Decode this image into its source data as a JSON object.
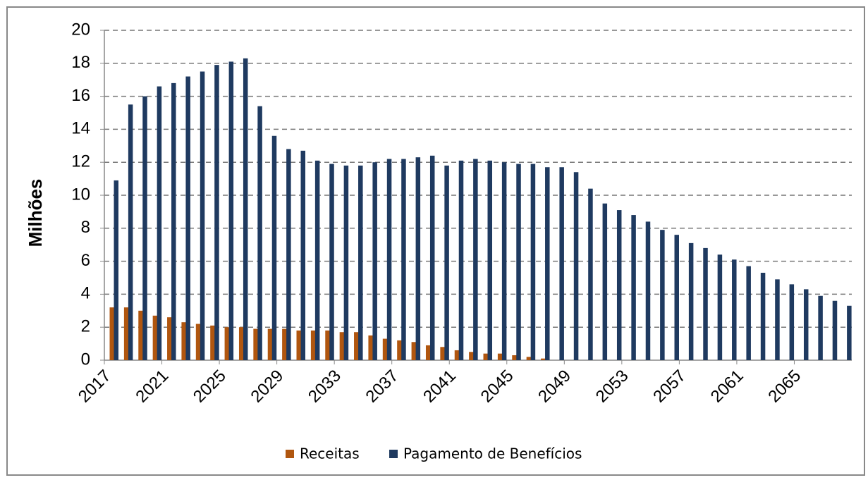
{
  "chart_data": {
    "type": "bar",
    "y_label": "Milhões",
    "categories": [
      "2017",
      null,
      null,
      null,
      "2021",
      null,
      null,
      null,
      "2025",
      null,
      null,
      null,
      "2029",
      null,
      null,
      null,
      "2033",
      null,
      null,
      null,
      "2037",
      null,
      null,
      null,
      "2041",
      null,
      null,
      null,
      "2045",
      null,
      null,
      null,
      "2049",
      null,
      null,
      null,
      "2053",
      null,
      null,
      null,
      "2057",
      null,
      null,
      null,
      "2061",
      null,
      null,
      null,
      "2065",
      null,
      null,
      null
    ],
    "series": [
      {
        "name": "Receitas",
        "color": "#b0560f",
        "values": [
          3.2,
          3.2,
          3.0,
          2.7,
          2.6,
          2.3,
          2.2,
          2.1,
          2.0,
          2.0,
          1.9,
          1.9,
          1.9,
          1.8,
          1.8,
          1.8,
          1.7,
          1.7,
          1.5,
          1.3,
          1.2,
          1.1,
          0.9,
          0.8,
          0.6,
          0.5,
          0.4,
          0.4,
          0.3,
          0.2,
          0.1,
          0,
          0,
          0,
          0,
          0,
          0,
          0,
          0,
          0,
          0,
          0,
          0,
          0,
          0,
          0,
          0,
          0,
          0,
          0,
          0,
          0
        ]
      },
      {
        "name": "Pagamento de Benefícios",
        "color": "#1f3a60",
        "values": [
          10.9,
          15.5,
          16.0,
          16.6,
          16.8,
          17.2,
          17.5,
          17.9,
          18.1,
          18.3,
          15.4,
          13.6,
          12.8,
          12.7,
          12.1,
          11.9,
          11.8,
          11.8,
          12.0,
          12.2,
          12.2,
          12.3,
          12.4,
          11.8,
          12.1,
          12.2,
          12.1,
          12.0,
          11.9,
          11.9,
          11.7,
          11.7,
          11.4,
          10.4,
          9.5,
          9.1,
          8.8,
          8.4,
          7.9,
          7.6,
          7.1,
          6.8,
          6.4,
          6.1,
          5.7,
          5.3,
          4.9,
          4.6,
          4.3,
          3.9,
          3.6,
          3.3
        ]
      }
    ],
    "ylim": [
      0,
      20
    ],
    "yticks": [
      0,
      2,
      4,
      6,
      8,
      10,
      12,
      14,
      16,
      18,
      20
    ],
    "grid": true,
    "legend": "bottom"
  }
}
